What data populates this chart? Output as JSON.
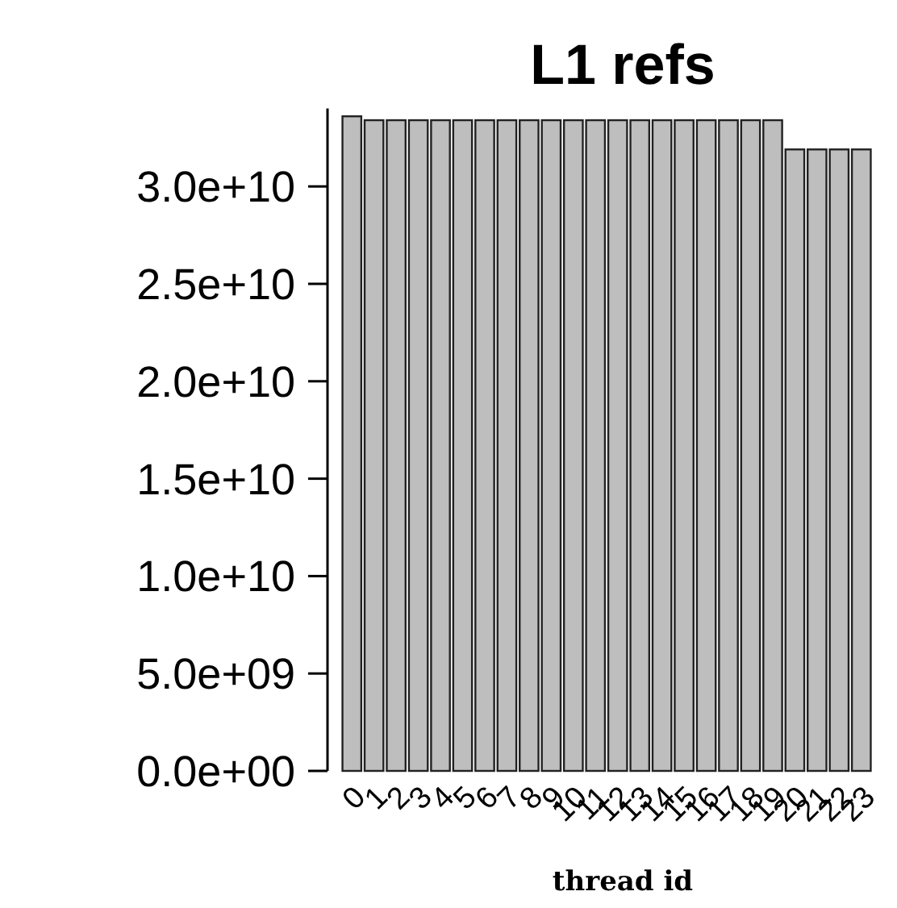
{
  "chart_data": {
    "type": "bar",
    "title": "L1 refs",
    "xlabel": "thread id",
    "categories": [
      "0",
      "1",
      "2",
      "3",
      "4",
      "5",
      "6",
      "7",
      "8",
      "9",
      "10",
      "11",
      "12",
      "13",
      "14",
      "15",
      "16",
      "17",
      "18",
      "19",
      "20",
      "21",
      "22",
      "23"
    ],
    "values": [
      33600000000.0,
      33400000000.0,
      33400000000.0,
      33400000000.0,
      33400000000.0,
      33400000000.0,
      33400000000.0,
      33400000000.0,
      33400000000.0,
      33400000000.0,
      33400000000.0,
      33400000000.0,
      33400000000.0,
      33400000000.0,
      33400000000.0,
      33400000000.0,
      33400000000.0,
      33400000000.0,
      33400000000.0,
      33400000000.0,
      31900000000.0,
      31900000000.0,
      31900000000.0,
      31900000000.0
    ],
    "color": "#bebebe",
    "ylim": [
      0,
      34000000000.0
    ],
    "yticks": [
      {
        "value": 0,
        "label": "0.0e+00"
      },
      {
        "value": 5000000000.0,
        "label": "5.0e+09"
      },
      {
        "value": 10000000000.0,
        "label": "1.0e+10"
      },
      {
        "value": 15000000000.0,
        "label": "1.5e+10"
      },
      {
        "value": 20000000000.0,
        "label": "2.0e+10"
      },
      {
        "value": 25000000000.0,
        "label": "2.5e+10"
      },
      {
        "value": 30000000000.0,
        "label": "3.0e+10"
      }
    ],
    "grid": false
  }
}
